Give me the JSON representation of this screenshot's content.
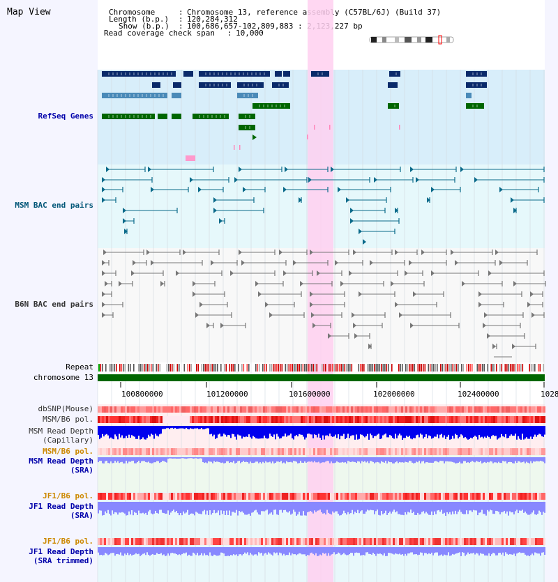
{
  "app": {
    "title": "Map View"
  },
  "info": {
    "chromosome_label": "Chromosome",
    "chromosome_value": "Chromosome 13, reference assembly (C57BL/6J) (Build 37)",
    "length_label": "Length (b.p.)",
    "length_value": "120,284,312",
    "show_label": "Show (b.p.)",
    "show_value": "100,686,657-102,809,883 : 2,123,227 bp",
    "coverage_label": "Read coverage check span",
    "coverage_value": "10,000"
  },
  "tracks": {
    "refseq": "RefSeq Genes",
    "msm_bac": "MSM BAC end pairs",
    "b6n_bac": "B6N BAC end pairs",
    "repeat": "Repeat",
    "chromosome": "chromosome 13",
    "dbsnp": "dbSNP(Mouse)",
    "msm_pol_1": "MSM/B6 pol.",
    "msm_depth_cap_1": "MSM Read Depth",
    "msm_depth_cap_2": "(Capillary)",
    "msm_pol_2": "MSM/B6 pol.",
    "msm_depth_sra_1": "MSM Read Depth",
    "msm_depth_sra_2": "(SRA)",
    "jf1_pol_1": "JF1/B6 pol.",
    "jf1_depth_sra_1": "JF1 Read Depth",
    "jf1_depth_sra_2": "(SRA)",
    "jf1_pol_2": "JF1/B6 pol.",
    "jf1_depth_trim_1": "JF1 Read Depth",
    "jf1_depth_trim_2": "(SRA trimmed)"
  },
  "axis": {
    "ticks": [
      "100800000",
      "101200000",
      "101600000",
      "102000000",
      "102400000",
      "1028"
    ]
  },
  "colors": {
    "refseq_dark": "#0a2a6a",
    "refseq_mid": "#4a8ab8",
    "refseq_green": "#006600",
    "bac_msm": "#0a6a8a",
    "bac_b6n": "#777777",
    "highlight": "#ffd0f0",
    "depth_blue": "#0000ee",
    "depth_light": "#8888ff",
    "chrom_green": "#006600"
  }
}
